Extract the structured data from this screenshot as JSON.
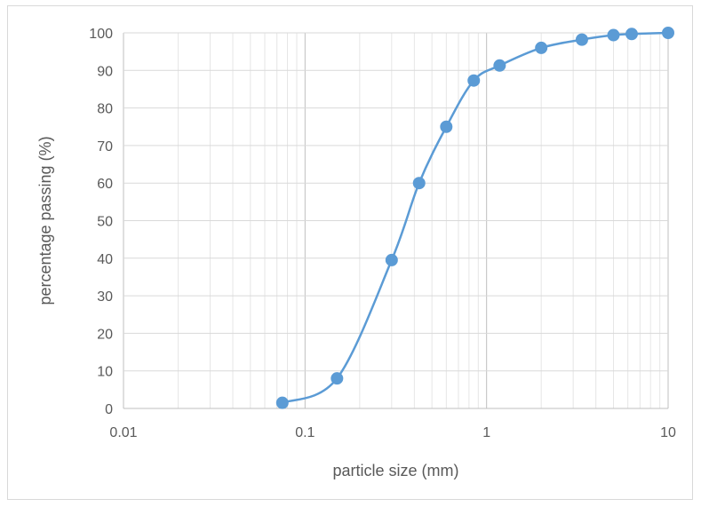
{
  "chart_data": {
    "type": "scatter",
    "title": "",
    "xlabel": "particle size (mm)",
    "ylabel": "percentage passing (%)",
    "xscale": "log",
    "xlim": [
      0.01,
      10
    ],
    "ylim": [
      0,
      100
    ],
    "x_tick_labels": [
      "0.01",
      "0.1",
      "1",
      "10"
    ],
    "y_tick_labels": [
      "0",
      "10",
      "20",
      "30",
      "40",
      "50",
      "60",
      "70",
      "80",
      "90",
      "100"
    ],
    "grid": true,
    "legend": "none",
    "series": [
      {
        "color": "#5b9bd5",
        "marker": "circle",
        "line": "smooth",
        "x": [
          0.075,
          0.15,
          0.3,
          0.425,
          0.6,
          0.85,
          1.18,
          2,
          3.35,
          5,
          6.3,
          10
        ],
        "y": [
          1.5,
          8,
          39.5,
          60,
          75,
          87.3,
          91.3,
          96,
          98.2,
          99.4,
          99.7,
          100
        ]
      }
    ]
  }
}
